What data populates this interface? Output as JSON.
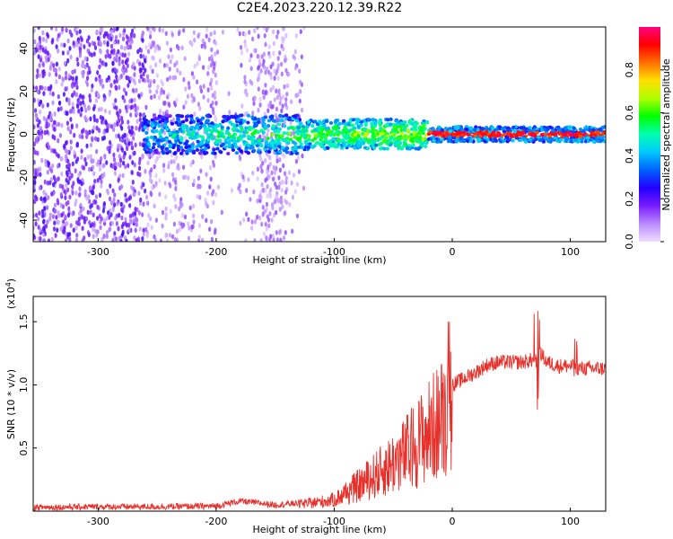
{
  "title": "C2E4.2023.220.12.39.R22",
  "chart_data": [
    {
      "type": "heatmap",
      "xlabel": "Height of straight line (km)",
      "ylabel": "Frequency (Hz)",
      "xlim": [
        -355,
        130
      ],
      "ylim": [
        -50,
        50
      ],
      "xticks": [
        -300,
        -200,
        -100,
        0,
        100
      ],
      "yticks": [
        -40,
        -20,
        0,
        20,
        40
      ],
      "colorbar": {
        "label": "Normalized spectral amplitude",
        "range": [
          0,
          1
        ],
        "ticks": [
          0.0,
          0.2,
          0.4,
          0.6,
          0.8
        ],
        "colormap": [
          "#f0dcff",
          "#b98bff",
          "#7a1cff",
          "#2200ff",
          "#0060ff",
          "#00c8ff",
          "#00ffb0",
          "#00ff00",
          "#b0ff00",
          "#ffe000",
          "#ff7000",
          "#ff0000",
          "#ff0080"
        ]
      },
      "grid": false
    },
    {
      "type": "line",
      "xlabel": "Height of straight line (km)",
      "ylabel": "SNR (10 * v/v)",
      "y_multiplier": "(x10^4)",
      "xlim": [
        -355,
        130
      ],
      "ylim": [
        0,
        17000
      ],
      "xticks": [
        -300,
        -200,
        -100,
        0,
        100
      ],
      "yticks": [
        5000,
        10000,
        15000
      ],
      "ytick_labels": [
        "0.5",
        "1.0",
        "1.5"
      ],
      "color": "#e8302b",
      "series": [
        {
          "x": [
            -355,
            -300,
            -250,
            -200,
            -180,
            -150,
            -120,
            -100,
            -80,
            -60,
            -40,
            -20,
            -10,
            0,
            10,
            20,
            30,
            40,
            50,
            60,
            70,
            75,
            80,
            90,
            100,
            110,
            120,
            130
          ],
          "values": [
            300,
            350,
            350,
            400,
            800,
            500,
            700,
            1000,
            2200,
            3500,
            5000,
            7000,
            8000,
            10000,
            10500,
            11000,
            11600,
            11800,
            11800,
            11800,
            12000,
            12500,
            11800,
            11500,
            11500,
            11300,
            11300,
            11300
          ]
        }
      ],
      "grid": false
    }
  ]
}
